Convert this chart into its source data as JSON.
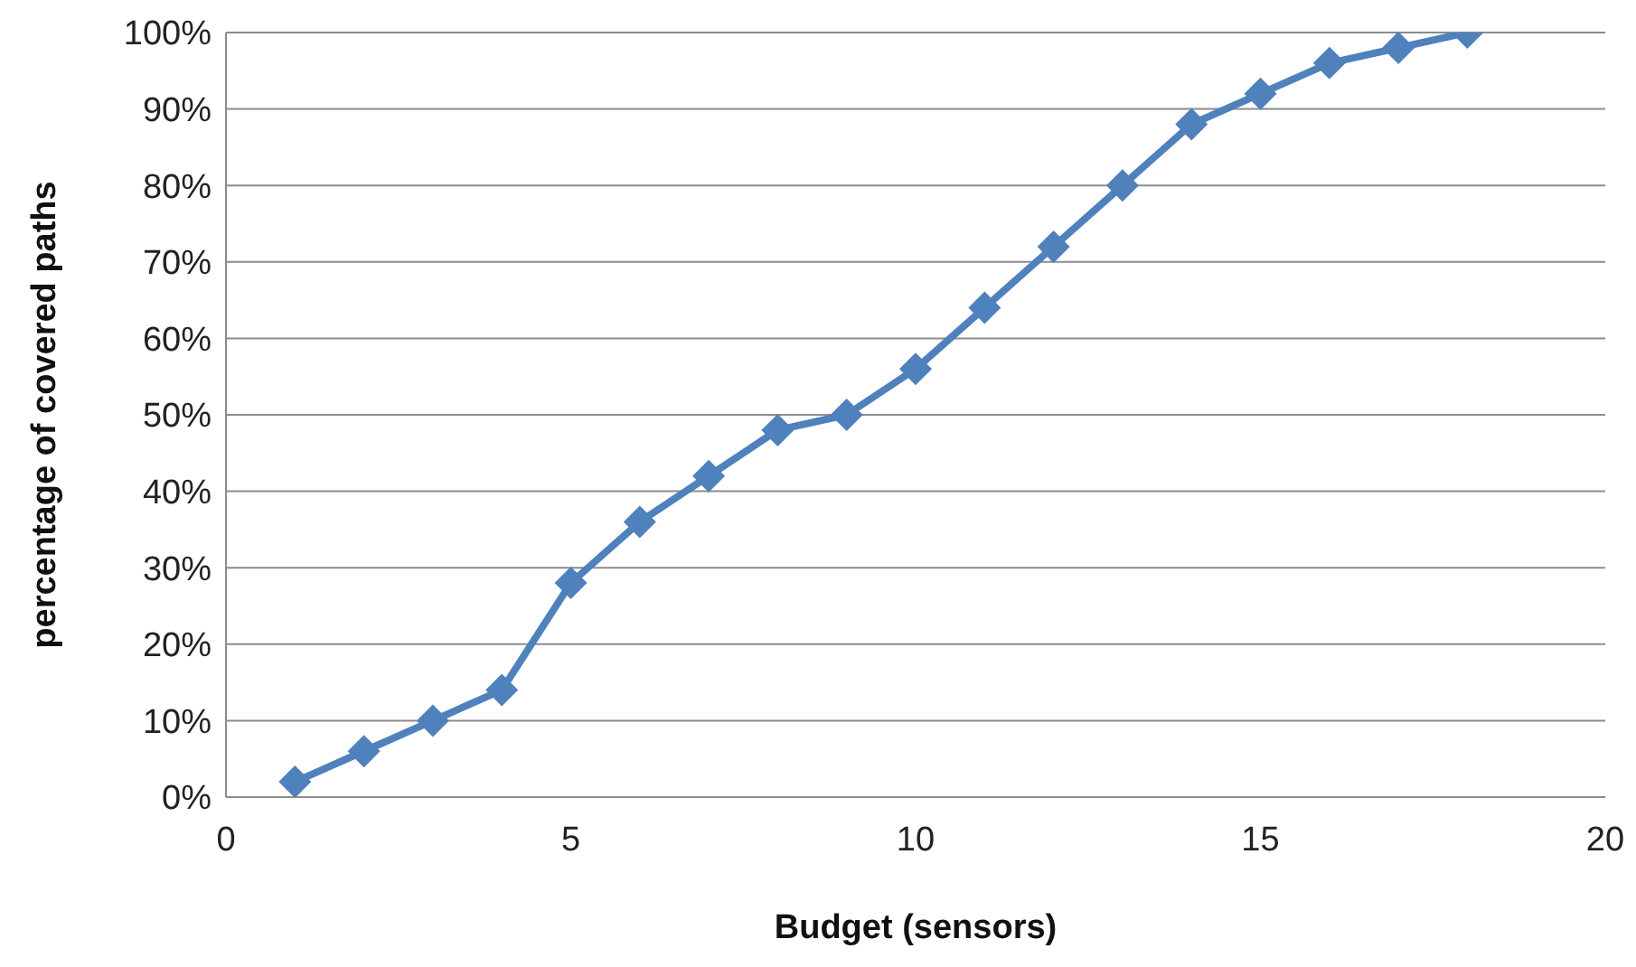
{
  "chart_data": {
    "type": "line",
    "xlabel": "Budget (sensors)",
    "ylabel": "percentage of covered paths",
    "x": [
      1,
      2,
      3,
      4,
      5,
      6,
      7,
      8,
      9,
      10,
      11,
      12,
      13,
      14,
      15,
      16,
      17,
      18
    ],
    "series": [
      {
        "color": "#4f81bd",
        "values": [
          2,
          6,
          10,
          14,
          28,
          36,
          42,
          48,
          50,
          56,
          64,
          72,
          80,
          88,
          92,
          96,
          98,
          100
        ]
      }
    ],
    "xlim": [
      0,
      20
    ],
    "xticks": [
      0,
      5,
      10,
      15,
      20
    ],
    "ylim": [
      0,
      100
    ],
    "yticks": [
      {
        "value": 0,
        "label": "0%"
      },
      {
        "value": 10,
        "label": "10%"
      },
      {
        "value": 20,
        "label": "20%"
      },
      {
        "value": 30,
        "label": "30%"
      },
      {
        "value": 40,
        "label": "40%"
      },
      {
        "value": 50,
        "label": "50%"
      },
      {
        "value": 60,
        "label": "60%"
      },
      {
        "value": 70,
        "label": "70%"
      },
      {
        "value": 80,
        "label": "80%"
      },
      {
        "value": 90,
        "label": "90%"
      },
      {
        "value": 100,
        "label": "100%"
      }
    ],
    "grid": "y",
    "legend": false,
    "marker": "diamond",
    "line_style": "solid"
  }
}
